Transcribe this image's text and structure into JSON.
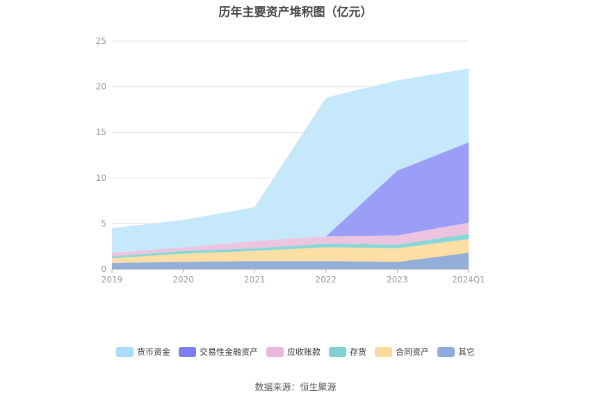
{
  "chart_data": {
    "type": "area",
    "title": "历年主要资产堆积图（亿元）",
    "x": [
      "2019",
      "2020",
      "2021",
      "2022",
      "2023",
      "2024Q1"
    ],
    "ylim": [
      0,
      25
    ],
    "yticks": [
      "0",
      "5",
      "10",
      "15",
      "20",
      "25"
    ],
    "grid": true,
    "legend_position": "bottom",
    "stacked": true,
    "series": [
      {
        "name": "其它",
        "color": "#93aed8",
        "values": [
          0.7,
          0.8,
          0.9,
          0.9,
          0.8,
          1.8
        ]
      },
      {
        "name": "合同资产",
        "color": "#fddea4",
        "values": [
          0.5,
          0.9,
          1.1,
          1.5,
          1.5,
          1.5
        ]
      },
      {
        "name": "存货",
        "color": "#8ad7d8",
        "values": [
          0.2,
          0.3,
          0.3,
          0.4,
          0.4,
          0.6
        ]
      },
      {
        "name": "应收账款",
        "color": "#ecc4e0",
        "values": [
          0.4,
          0.4,
          0.8,
          0.8,
          1.0,
          1.2
        ]
      },
      {
        "name": "交易性金融资产",
        "color": "#9b9ef7",
        "values": [
          0.0,
          0.0,
          0.0,
          0.0,
          7.1,
          8.8
        ]
      },
      {
        "name": "货币资金",
        "color": "#c5e9fb",
        "values": [
          2.7,
          3.0,
          3.7,
          15.2,
          9.9,
          8.1
        ]
      }
    ],
    "legend": [
      {
        "name": "货币资金",
        "color": "#a8dcf7"
      },
      {
        "name": "交易性金融资产",
        "color": "#7b7ef0"
      },
      {
        "name": "应收账款",
        "color": "#e7b8d8"
      },
      {
        "name": "存货",
        "color": "#7fd3d4"
      },
      {
        "name": "合同资产",
        "color": "#fcd99a"
      },
      {
        "name": "其它",
        "color": "#8fabd9"
      }
    ]
  },
  "footer": {
    "source": "数据来源：恒生聚源"
  }
}
